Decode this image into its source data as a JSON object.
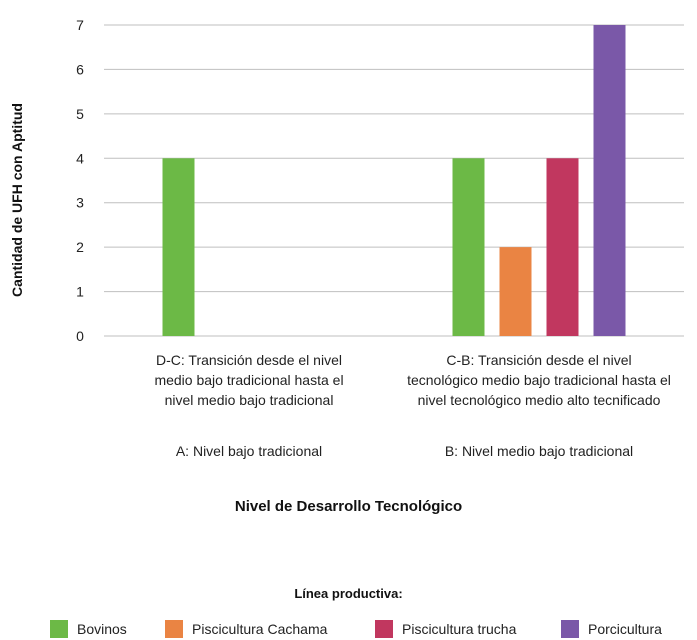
{
  "chart_data": {
    "type": "bar",
    "categories": [
      {
        "label": "D-C: Transición desde el nivel medio bajo tradicional hasta el nivel medio bajo tradicional",
        "lines": [
          "D-C: Transición desde el nivel",
          "medio bajo tradicional hasta el",
          "nivel medio bajo tradicional"
        ],
        "level": "A: Nivel bajo tradicional"
      },
      {
        "label": "C-B: Transición desde el nivel tecnológico medio bajo tradicional hasta el nivel tecnológico medio alto tecnificado",
        "lines": [
          "C-B: Transición desde el nivel",
          "tecnológico medio bajo tradicional hasta el",
          "nivel tecnológico medio alto tecnificado"
        ],
        "level": "B: Nivel medio bajo tradicional"
      }
    ],
    "series": [
      {
        "name": "Bovinos",
        "color": "#6cb946",
        "values": [
          4,
          4
        ]
      },
      {
        "name": "Piscicultura Cachama",
        "color": "#ea8443",
        "values": [
          null,
          2
        ]
      },
      {
        "name": "Piscicultura trucha",
        "color": "#c1375f",
        "values": [
          null,
          4
        ]
      },
      {
        "name": "Porcicultura",
        "color": "#7a58a8",
        "values": [
          null,
          7
        ]
      }
    ],
    "title": "",
    "xlabel": "Nivel de Desarrollo Tecnológico",
    "ylabel": "Cantidad de UFH con Aptitud",
    "ylim": [
      0,
      7
    ],
    "yticks": [
      0,
      1,
      2,
      3,
      4,
      5,
      6,
      7
    ],
    "grid": true,
    "legend_title": "Línea productiva:",
    "legend_position": "bottom"
  }
}
